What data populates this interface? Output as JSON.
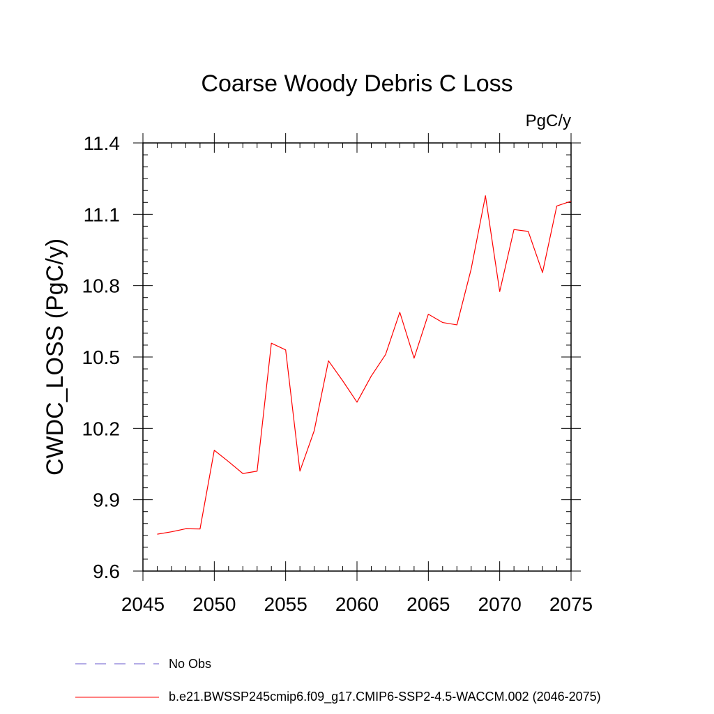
{
  "chart_data": {
    "type": "line",
    "title": "Coarse Woody Debris C Loss",
    "units_label": "PgC/y",
    "xlabel": "",
    "ylabel": "CWDC_LOSS  (PgC/y)",
    "xlim": [
      2045,
      2075
    ],
    "ylim": [
      9.6,
      11.4
    ],
    "xticks": [
      2045,
      2050,
      2055,
      2060,
      2065,
      2070,
      2075
    ],
    "yticks": [
      9.6,
      9.9,
      10.2,
      10.5,
      10.8,
      11.1,
      11.4
    ],
    "ytick_labels": [
      "9.6",
      "9.9",
      "10.2",
      "10.5",
      "10.8",
      "11.1",
      "11.4"
    ],
    "grid": false,
    "legend_placement": "bottom",
    "series": [
      {
        "name": "b.e21.BWSSP245cmip6.f09_g17.CMIP6-SSP2-4.5-WACCM.002 (2046-2075)",
        "color": "#ff0000",
        "x": [
          2046,
          2047,
          2048,
          2049,
          2050,
          2051,
          2052,
          2053,
          2054,
          2055,
          2056,
          2057,
          2058,
          2059,
          2060,
          2061,
          2062,
          2063,
          2064,
          2065,
          2066,
          2067,
          2068,
          2069,
          2070,
          2071,
          2072,
          2073,
          2074,
          2075
        ],
        "y": [
          9.755,
          9.765,
          9.778,
          9.777,
          10.108,
          10.06,
          10.01,
          10.02,
          10.558,
          10.53,
          10.02,
          10.19,
          10.484,
          10.4,
          10.31,
          10.42,
          10.51,
          10.688,
          10.495,
          10.68,
          10.645,
          10.635,
          10.87,
          11.178,
          10.775,
          11.036,
          11.028,
          10.855,
          11.135,
          11.155
        ]
      }
    ],
    "legend": [
      {
        "label": "No Obs",
        "color": "#6a5acd",
        "style": "dashed"
      },
      {
        "label": "b.e21.BWSSP245cmip6.f09_g17.CMIP6-SSP2-4.5-WACCM.002 (2046-2075)",
        "color": "#ff0000",
        "style": "solid"
      }
    ]
  }
}
